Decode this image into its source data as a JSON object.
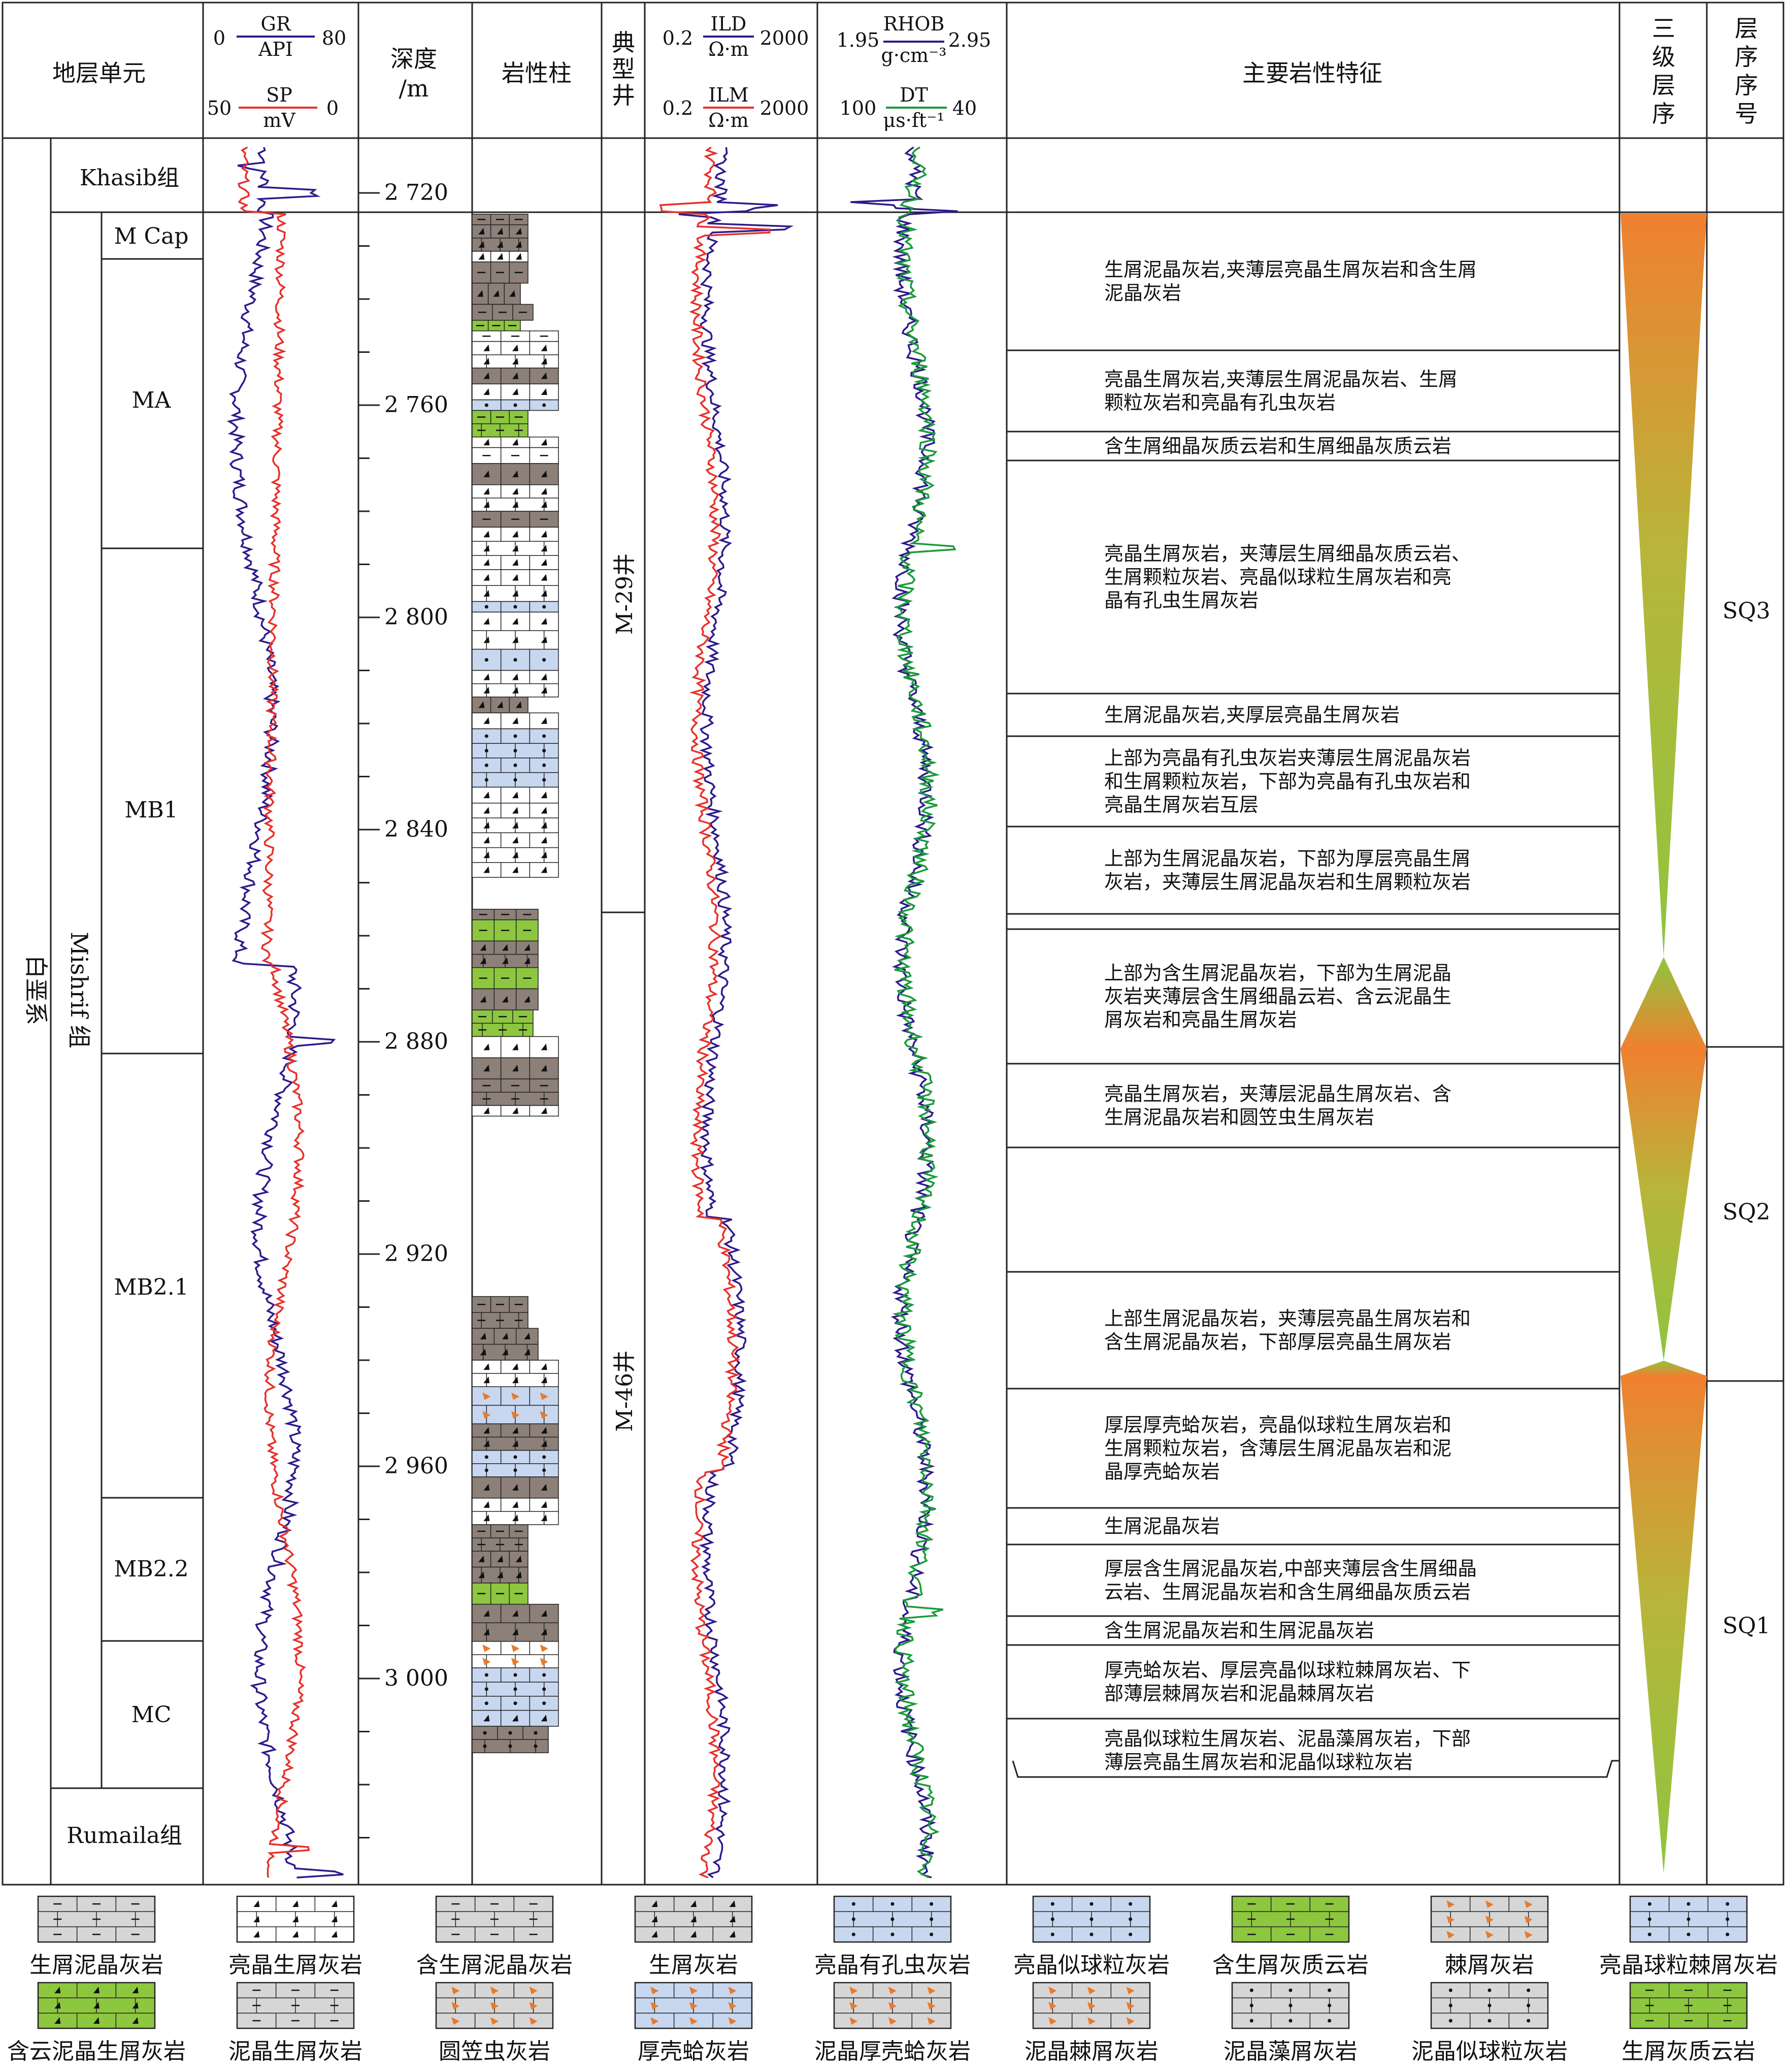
{
  "header": {
    "strat_unit": "地层单元",
    "gr_label": "GR",
    "gr_unit": "API",
    "gr_min": "0",
    "gr_max": "80",
    "sp_label": "SP",
    "sp_unit": "mV",
    "sp_min": "50",
    "sp_max": "0",
    "depth_label_1": "深度",
    "depth_label_2": "/m",
    "lith_col": "岩性柱",
    "well_col_1": "典",
    "well_col_2": "型",
    "well_col_3": "井",
    "ild_label": "ILD",
    "ild_unit": "Ω·m",
    "ild_min": "0.2",
    "ild_max": "2000",
    "ilm_label": "ILM",
    "ilm_unit": "Ω·m",
    "ilm_min": "0.2",
    "ilm_max": "2000",
    "rhob_label": "RHOB",
    "rhob_unit": "g·cm⁻³",
    "rhob_min": "1.95",
    "rhob_max": "2.95",
    "dt_label": "DT",
    "dt_unit": "μs·ft⁻¹",
    "dt_min": "100",
    "dt_max": "40",
    "desc_col": "主要岩性特征",
    "third_order_1": "三",
    "third_order_2": "级",
    "third_order_3": "层",
    "third_order_4": "序",
    "seq_no_1": "层",
    "seq_no_2": "序",
    "seq_no_3": "序",
    "seq_no_4": "号"
  },
  "system": "白垩系",
  "formation": "Mishrif 组",
  "khasib": "Khasib组",
  "rumaila": "Rumaila组",
  "members": [
    "M Cap",
    "MA",
    "MB1",
    "MB2.1",
    "MB2.2",
    "MC"
  ],
  "depth_ticks": [
    "2 720",
    "2 760",
    "2 800",
    "2 840",
    "2 880",
    "2 920",
    "2 960",
    "3 000"
  ],
  "wells": [
    "M-29井",
    "M-46井"
  ],
  "descriptions": [
    "生屑泥晶灰岩,夹薄层亮晶生屑灰岩和含生屑|泥晶灰岩",
    "亮晶生屑灰岩,夹薄层生屑泥晶灰岩、生屑|颗粒灰岩和亮晶有孔虫灰岩",
    "含生屑细晶灰质云岩和生屑细晶灰质云岩",
    "亮晶生屑灰岩，夹薄层生屑细晶灰质云岩、|生屑颗粒灰岩、亮晶似球粒生屑灰岩和亮|晶有孔虫生屑灰岩",
    "生屑泥晶灰岩,夹厚层亮晶生屑灰岩",
    "上部为亮晶有孔虫灰岩夹薄层生屑泥晶灰岩|和生屑颗粒灰岩，下部为亮晶有孔虫灰岩和|亮晶生屑灰岩互层",
    "上部为生屑泥晶灰岩，下部为厚层亮晶生屑|灰岩，夹薄层生屑泥晶灰岩和生屑颗粒灰岩",
    "上部为含生屑泥晶灰岩，下部为生屑泥晶|灰岩夹薄层含生屑细晶云岩、含云泥晶生|屑灰岩和亮晶生屑灰岩",
    "亮晶生屑灰岩，夹薄层泥晶生屑灰岩、含|生屑泥晶灰岩和圆笠虫生屑灰岩",
    "上部生屑泥晶灰岩，夹薄层亮晶生屑灰岩和|含生屑泥晶灰岩，下部厚层亮晶生屑灰岩",
    "厚层厚壳蛤灰岩，亮晶似球粒生屑灰岩和|生屑颗粒灰岩，含薄层生屑泥晶灰岩和泥|晶厚壳蛤灰岩",
    "生屑泥晶灰岩",
    "厚层含生屑泥晶灰岩,中部夹薄层含生屑细晶|云岩、生屑泥晶灰岩和含生屑细晶灰质云岩",
    "含生屑泥晶灰岩和生屑泥晶灰岩",
    "厚壳蛤灰岩、厚层亮晶似球粒棘屑灰岩、下|部薄层棘屑灰岩和泥晶棘屑灰岩",
    "亮晶似球粒生屑灰岩、泥晶藻屑灰岩，下部|薄层亮晶生屑灰岩和泥晶似球粒灰岩"
  ],
  "sequences": [
    "SQ3",
    "SQ2",
    "SQ1"
  ],
  "legend": [
    {
      "label": "生屑泥晶灰岩",
      "color": "#d6d6d6"
    },
    {
      "label": "亮晶生屑灰岩",
      "color": "#ffffff"
    },
    {
      "label": "含生屑泥晶灰岩",
      "color": "#d6d6d6"
    },
    {
      "label": "生屑灰岩",
      "color": "#d6d6d6"
    },
    {
      "label": "亮晶有孔虫灰岩",
      "color": "#c7d7ef"
    },
    {
      "label": "亮晶似球粒灰岩",
      "color": "#c7d7ef"
    },
    {
      "label": "含生屑灰质云岩",
      "color": "#8dc63f"
    },
    {
      "label": "棘屑灰岩",
      "color": "#d6d6d6"
    },
    {
      "label": "亮晶球粒棘屑灰岩",
      "color": "#c7d7ef"
    },
    {
      "label": "含云泥晶生屑灰岩",
      "color": "#8dc63f"
    },
    {
      "label": "泥晶生屑灰岩",
      "color": "#d6d6d6"
    },
    {
      "label": "圆笠虫灰岩",
      "color": "#d6d6d6"
    },
    {
      "label": "厚壳蛤灰岩",
      "color": "#c7d7ef"
    },
    {
      "label": "泥晶厚壳蛤灰岩",
      "color": "#d6d6d6"
    },
    {
      "label": "泥晶棘屑灰岩",
      "color": "#d6d6d6"
    },
    {
      "label": "泥晶藻屑灰岩",
      "color": "#d6d6d6"
    },
    {
      "label": "泥晶似球粒灰岩",
      "color": "#d6d6d6"
    },
    {
      "label": "生屑灰质云岩",
      "color": "#8dc63f"
    }
  ],
  "colors": {
    "gr": "#2e1a8c",
    "sp": "#e8302a",
    "ild": "#2e1a8c",
    "ilm": "#e8302a",
    "rhob": "#2e1a8c",
    "dt": "#1a9a3a",
    "orange": "#f08030",
    "green": "#8dc63f",
    "dark_lith": "#8c8079",
    "blue_lith": "#c7d7ef"
  }
}
